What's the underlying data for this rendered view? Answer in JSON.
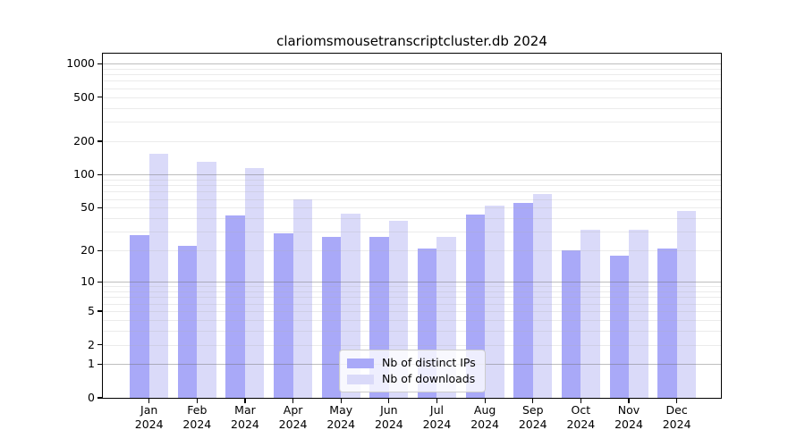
{
  "title": "clariomsmousetranscriptcluster.db 2024",
  "chart_data": {
    "type": "bar",
    "title": "clariomsmousetranscriptcluster.db 2024",
    "categories": [
      "Jan 2024",
      "Feb 2024",
      "Mar 2024",
      "Apr 2024",
      "May 2024",
      "Jun 2024",
      "Jul 2024",
      "Aug 2024",
      "Sep 2024",
      "Oct 2024",
      "Nov 2024",
      "Dec 2024"
    ],
    "series": [
      {
        "name": "Nb of distinct IPs",
        "color": "#a9a9f8",
        "values": [
          28,
          22,
          42,
          29,
          27,
          27,
          21,
          43,
          55,
          20,
          18,
          21
        ]
      },
      {
        "name": "Nb of downloads",
        "color": "#dadaf9",
        "values": [
          155,
          130,
          115,
          59,
          44,
          38,
          27,
          52,
          66,
          31,
          31,
          47
        ]
      }
    ],
    "xlabel": "",
    "ylabel": "",
    "y_scale": "log1p",
    "y_ticks": [
      0,
      1,
      2,
      5,
      10,
      20,
      50,
      100,
      200,
      500,
      1000
    ],
    "ylim": [
      0,
      1230
    ],
    "grid": true,
    "grid_minor_ticks": [
      2,
      3,
      4,
      5,
      6,
      7,
      8,
      9,
      20,
      30,
      40,
      50,
      60,
      70,
      80,
      90,
      200,
      300,
      400,
      500,
      600,
      700,
      800,
      900
    ],
    "grid_major_ticks": [
      1,
      10,
      100,
      1000
    ],
    "legend_position": "inside-bottom-center",
    "frame_color": "#000000",
    "background_color": "#ffffff"
  }
}
